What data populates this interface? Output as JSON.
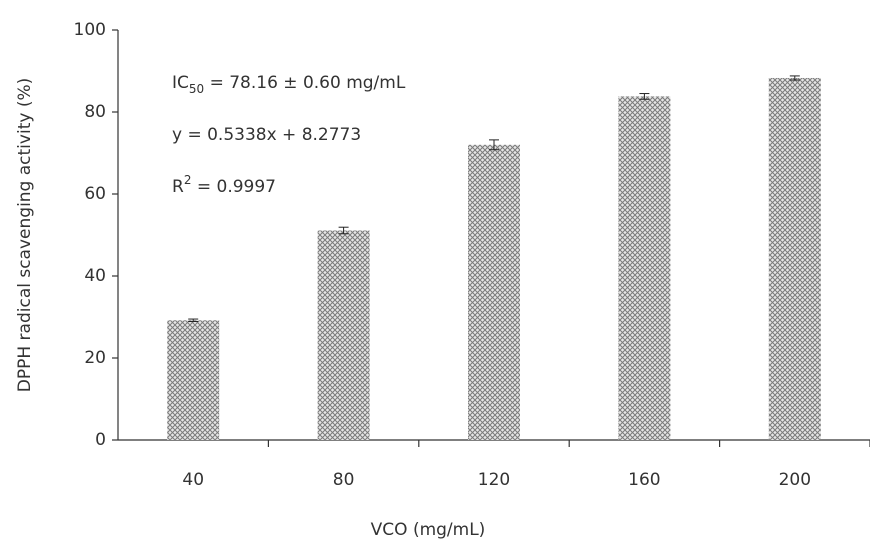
{
  "chart_data": {
    "type": "bar",
    "x_label": "VCO (mg/mL)",
    "y_label": "DPPH radical scavenging activity (%)",
    "categories": [
      "40",
      "80",
      "120",
      "160",
      "200"
    ],
    "values": [
      29.2,
      51.1,
      72.0,
      83.8,
      88.3
    ],
    "errors": [
      0.3,
      0.8,
      1.2,
      0.7,
      0.5
    ],
    "color": "#7a7a7a",
    "ylim": [
      0,
      100
    ],
    "yticks": [
      0,
      20,
      40,
      60,
      80,
      100
    ],
    "grid": false,
    "annotations": [
      {
        "base": "IC",
        "sub": "50",
        "text": " = 78.16 ± 0.60 mg/mL"
      },
      {
        "text": "y = 0.5338x + 8.2773"
      },
      {
        "base": "R",
        "sup": "2",
        "text": " = 0.9997"
      }
    ]
  }
}
